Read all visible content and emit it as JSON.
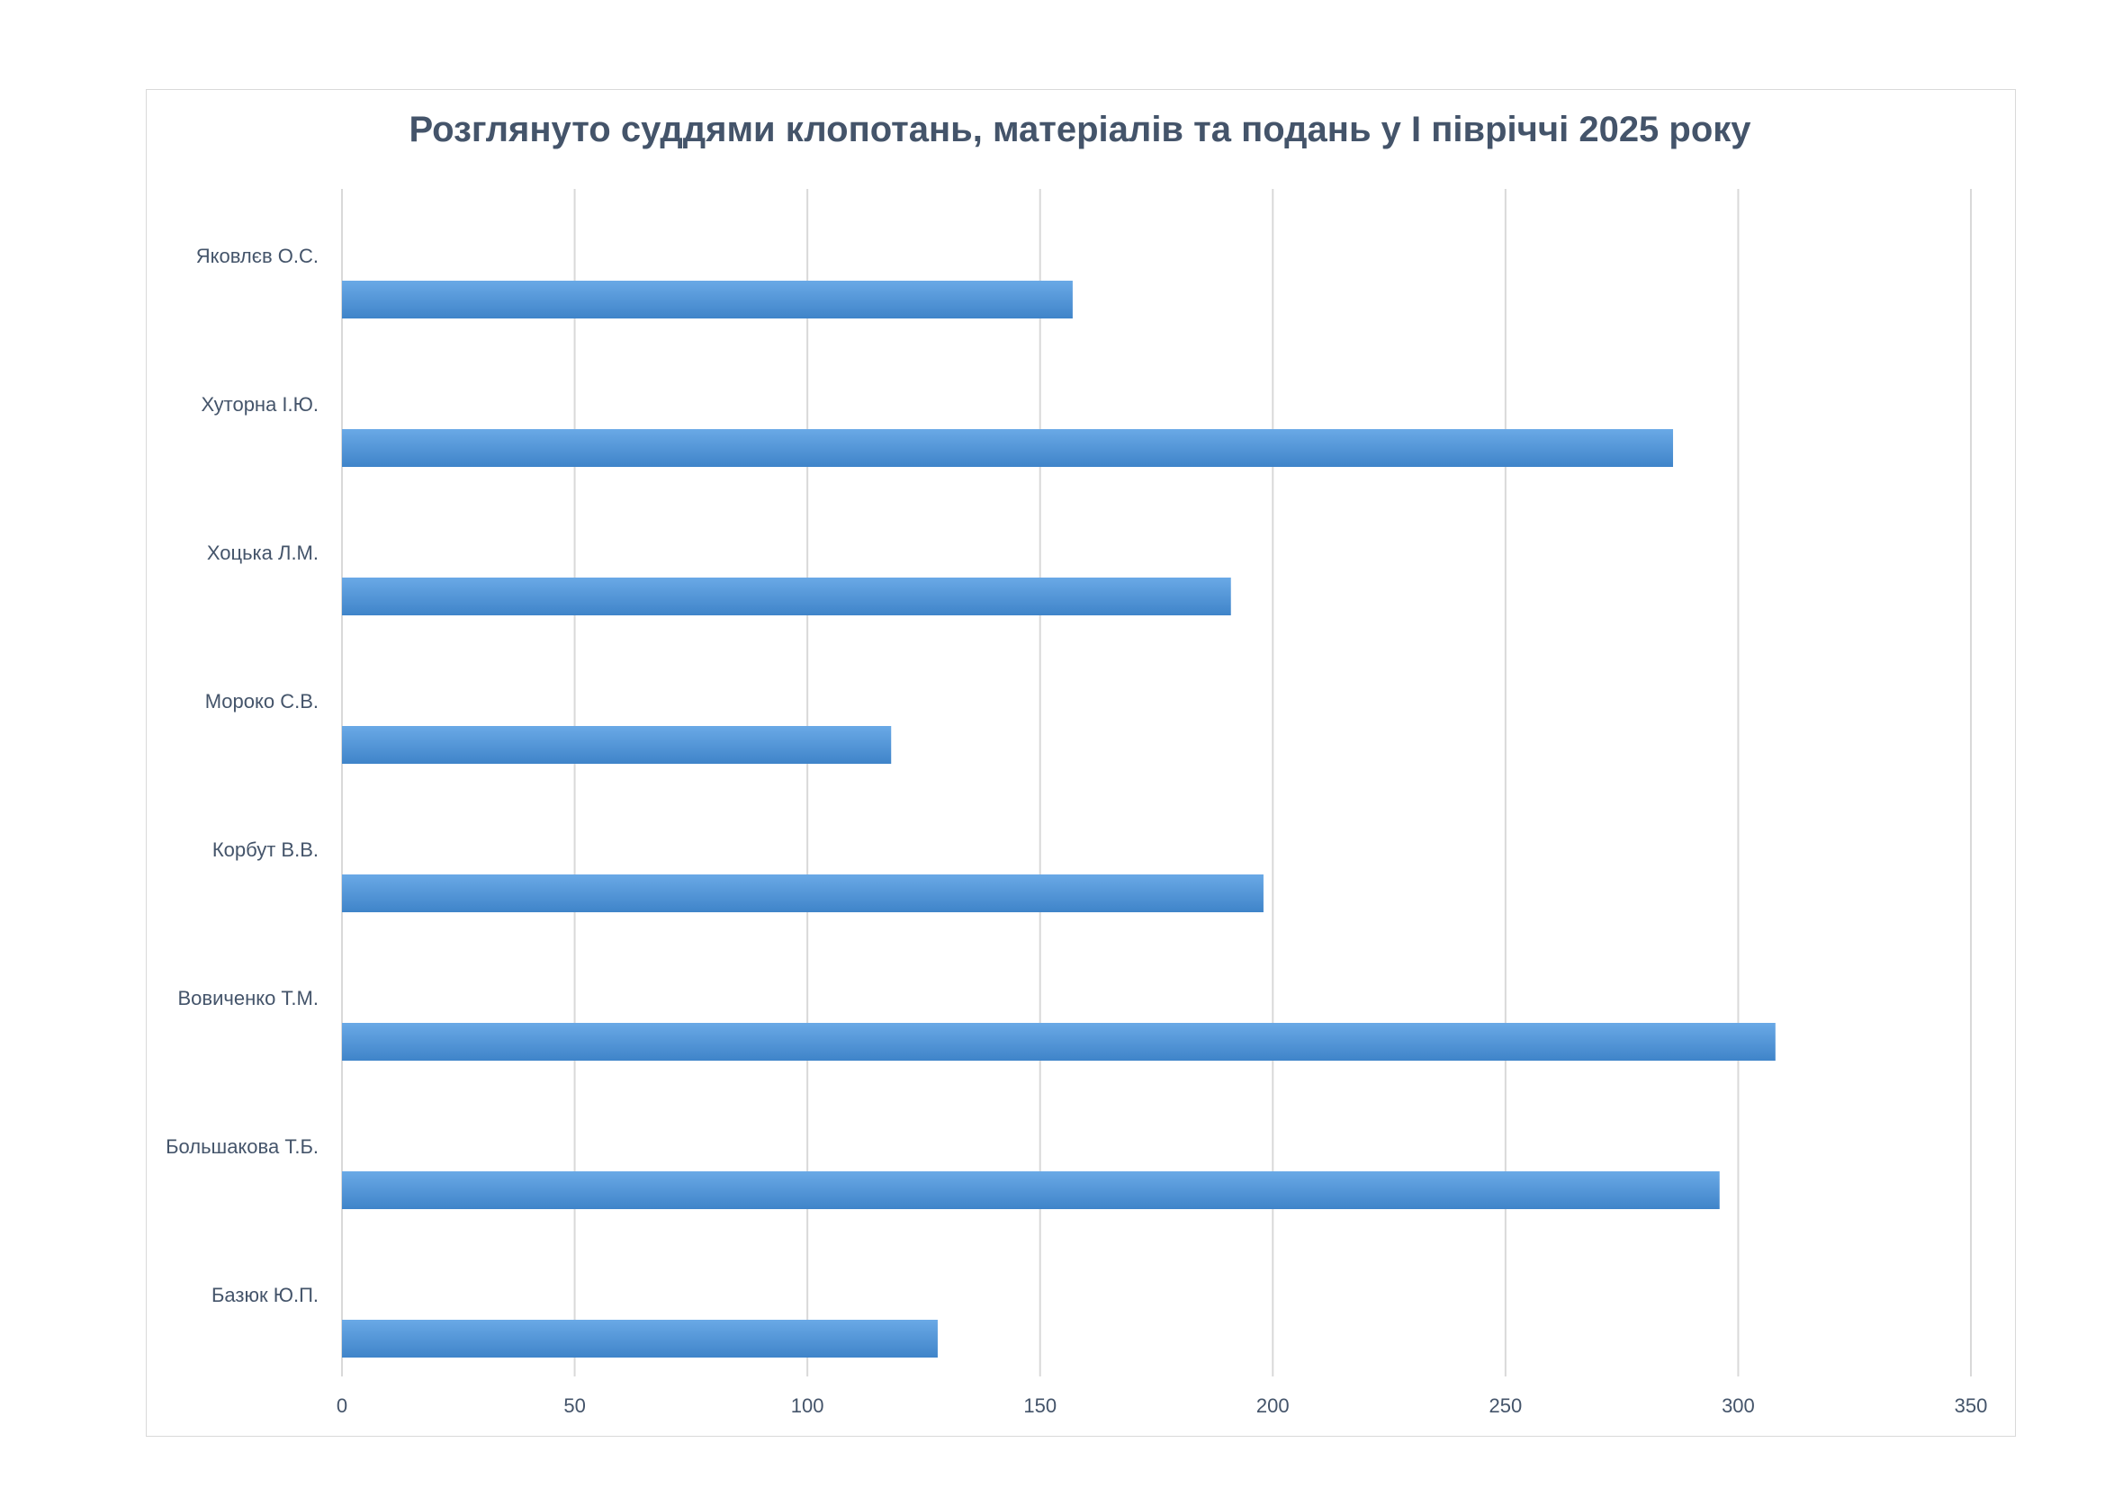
{
  "chart_data": {
    "type": "bar",
    "orientation": "horizontal",
    "title": "Розглянуто суддями клопотань, матеріалів та подань у І півріччі 2025 року",
    "categories": [
      "Яковлєв О.С.",
      "Хуторна І.Ю.",
      "Хоцька Л.М.",
      "Мороко С.В.",
      "Корбут В.В.",
      "Вовиченко Т.М.",
      "Большакова Т.Б.",
      "Базюк Ю.П."
    ],
    "values": [
      157,
      286,
      191,
      118,
      198,
      308,
      296,
      128
    ],
    "xlim": [
      0,
      350
    ],
    "xticks": [
      0,
      50,
      100,
      150,
      200,
      250,
      300,
      350
    ],
    "grid": true,
    "legend": "none",
    "bar_color": "#4a8fd4"
  }
}
